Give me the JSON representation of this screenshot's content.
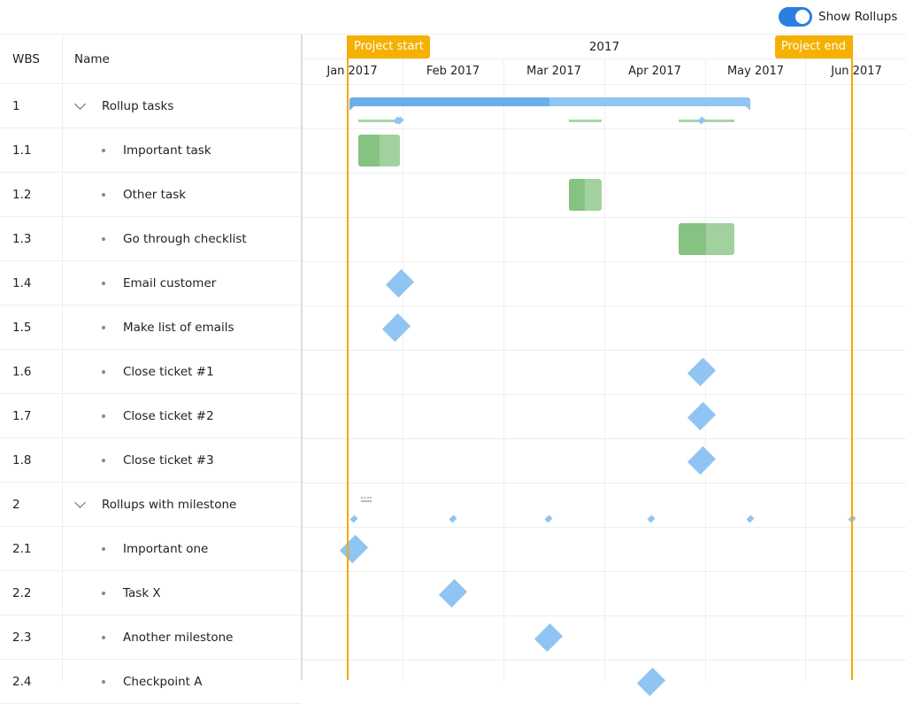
{
  "toolbar": {
    "show_rollups_label": "Show Rollups",
    "show_rollups": true
  },
  "grid": {
    "headers": {
      "wbs": "WBS",
      "name": "Name"
    },
    "rows": [
      {
        "wbs": "1",
        "name": "Rollup tasks",
        "parent": true
      },
      {
        "wbs": "1.1",
        "name": "Important task"
      },
      {
        "wbs": "1.2",
        "name": "Other task"
      },
      {
        "wbs": "1.3",
        "name": "Go through checklist"
      },
      {
        "wbs": "1.4",
        "name": "Email customer"
      },
      {
        "wbs": "1.5",
        "name": "Make list of emails"
      },
      {
        "wbs": "1.6",
        "name": "Close ticket #1"
      },
      {
        "wbs": "1.7",
        "name": "Close ticket #2"
      },
      {
        "wbs": "1.8",
        "name": "Close ticket #3"
      },
      {
        "wbs": "2",
        "name": "Rollups with milestone",
        "parent": true
      },
      {
        "wbs": "2.1",
        "name": "Important one"
      },
      {
        "wbs": "2.2",
        "name": "Task X"
      },
      {
        "wbs": "2.3",
        "name": "Another milestone"
      },
      {
        "wbs": "2.4",
        "name": "Checkpoint A"
      }
    ]
  },
  "timeline": {
    "year": "2017",
    "months": [
      "Jan 2017",
      "Feb 2017",
      "Mar 2017",
      "Apr 2017",
      "May 2017",
      "Jun 2017"
    ],
    "project_start": "Project start",
    "project_end": "Project end"
  },
  "colors": {
    "accent": "#2b7fe0",
    "task": "#a2d19f",
    "milestone": "#90c4f2",
    "project_line": "#f5a800"
  }
}
